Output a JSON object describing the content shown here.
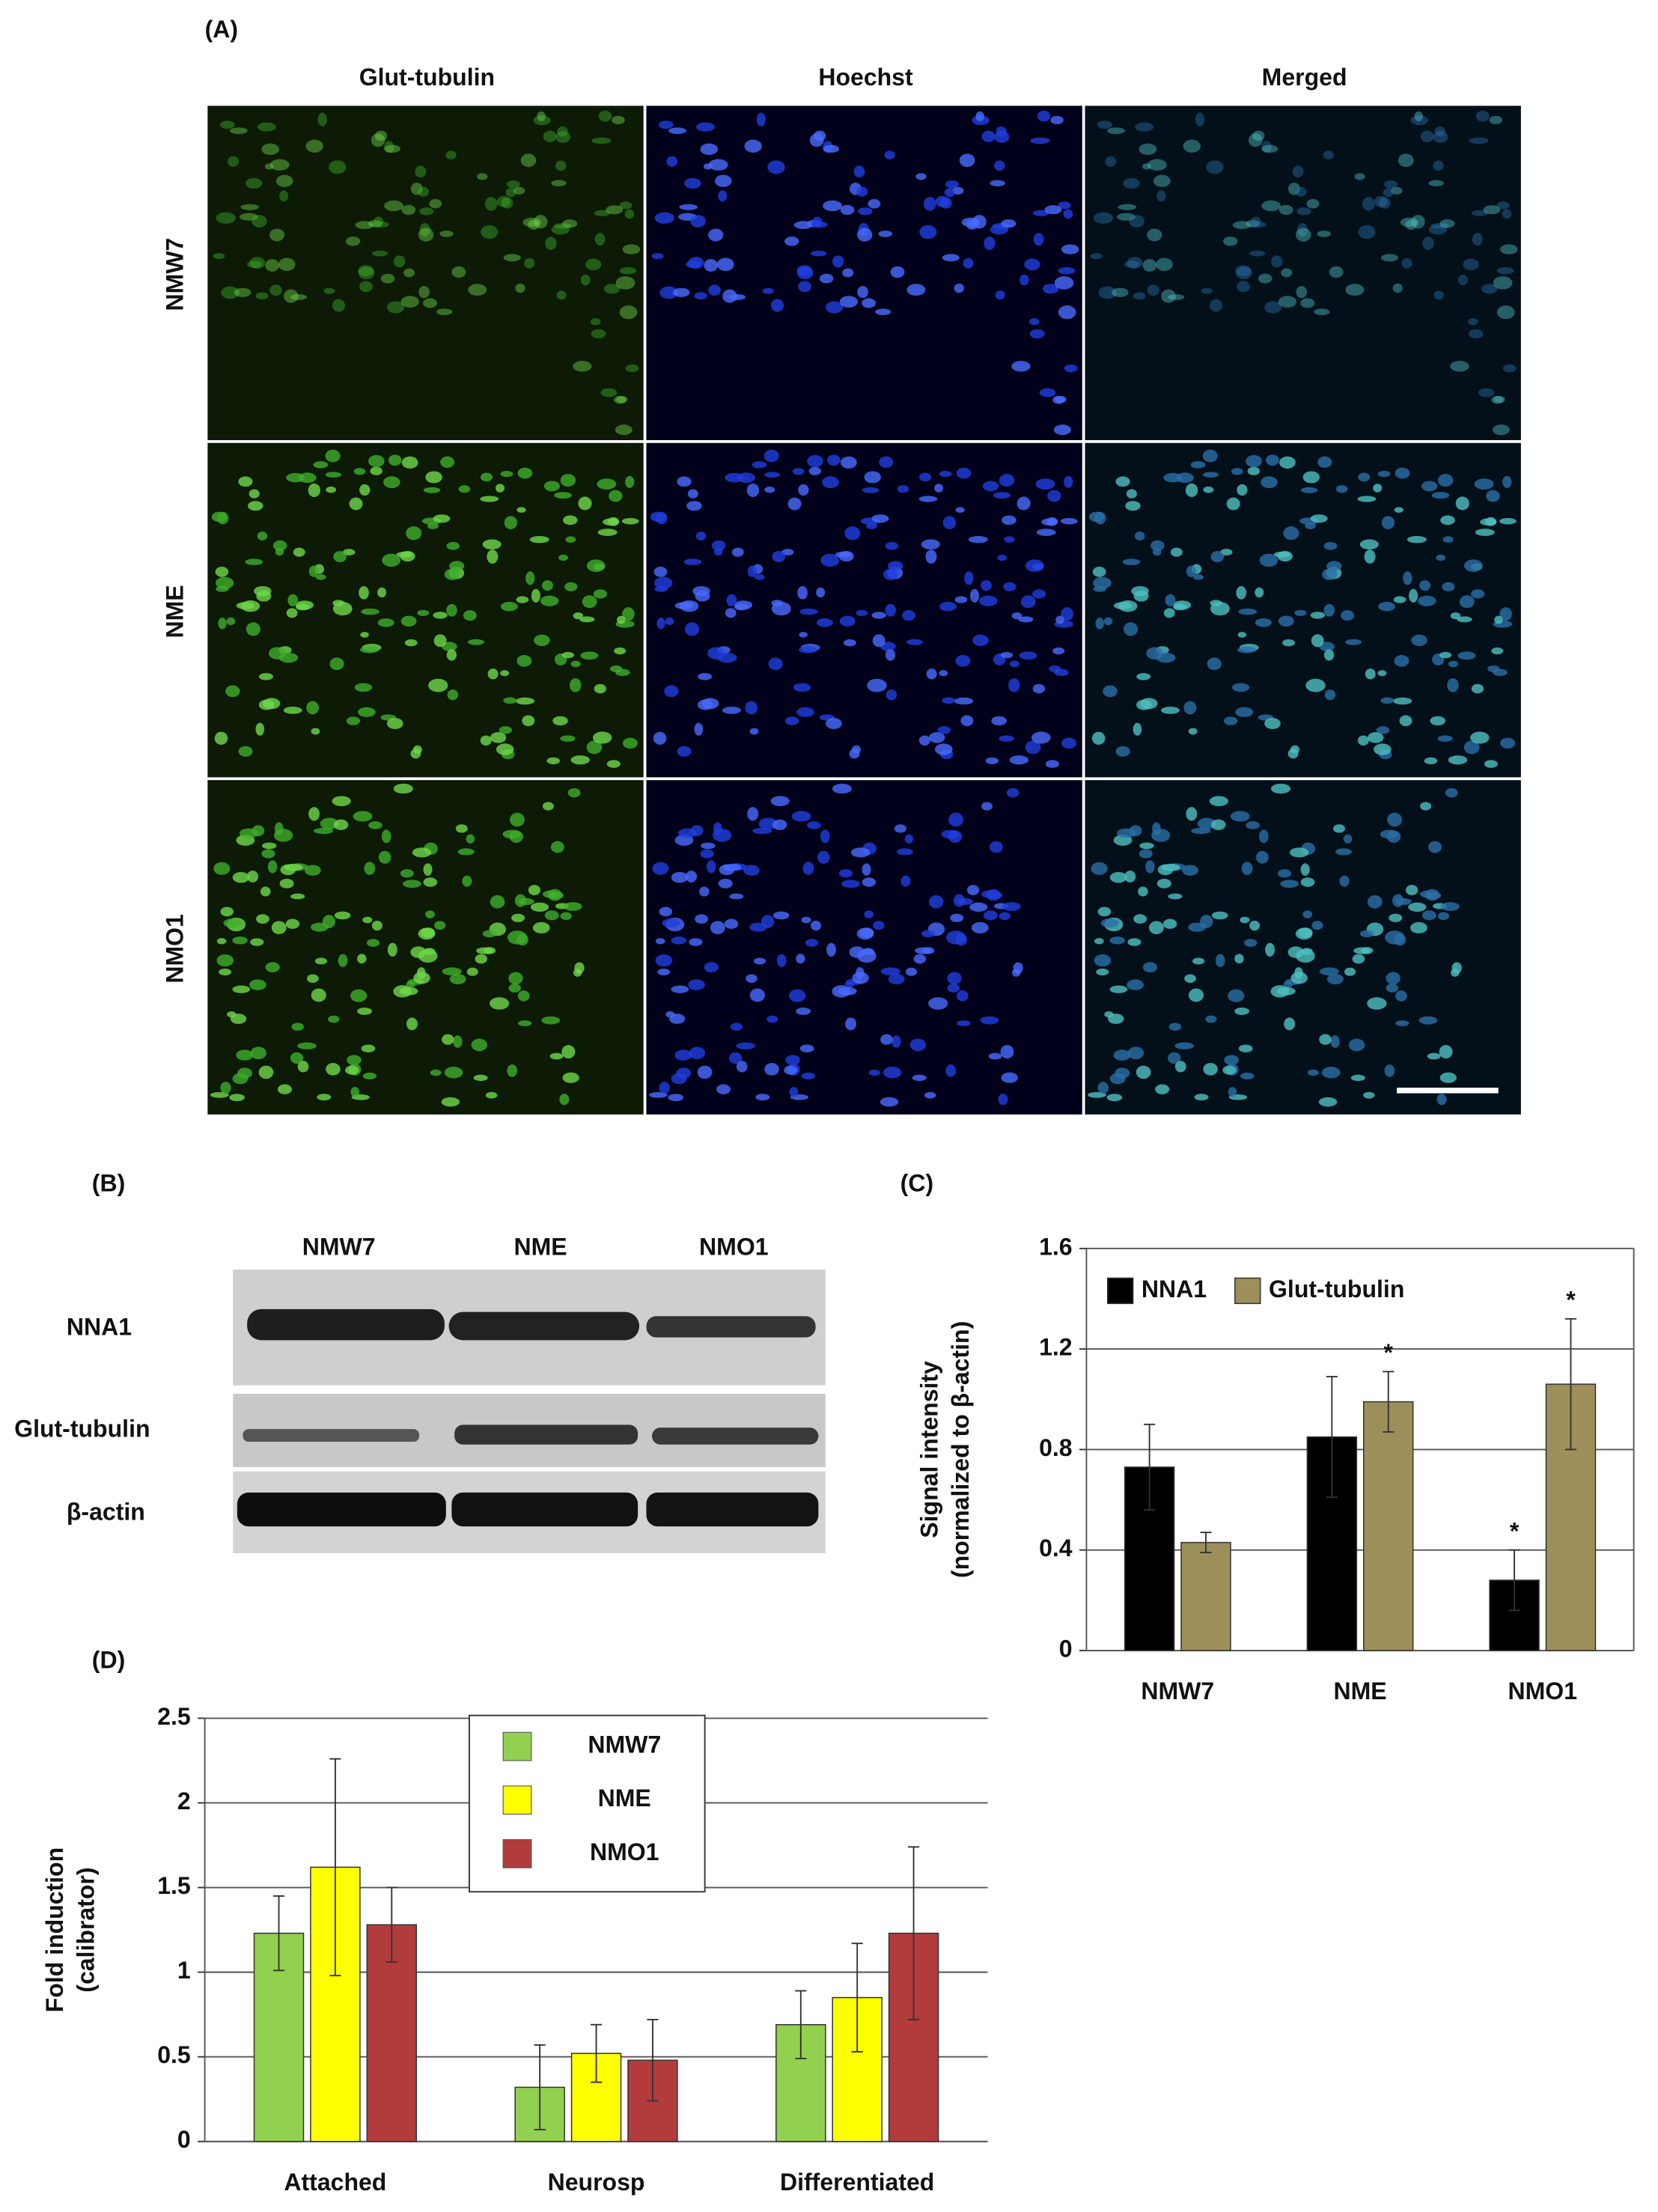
{
  "panel_labels": [
    "(A)",
    "(B)",
    "(C)",
    "(D)"
  ],
  "microscopy": {
    "columns": [
      "Glut-tubulin",
      "Hoechst",
      "Merged"
    ],
    "rows": [
      "NMW7",
      "NME",
      "NMO1"
    ]
  },
  "western_blot": {
    "lanes": [
      "NMW7",
      "NME",
      "NMO1"
    ],
    "bands": [
      "NNA1",
      "Glut-tubulin",
      "β-actin"
    ]
  },
  "chart_data": [
    {
      "type": "bar",
      "y_label": [
        "Signal intensity",
        "(normalized to β-actin)"
      ],
      "categories": [
        "NMW7",
        "NME",
        "NMO1"
      ],
      "series": [
        {
          "name": "NNA1",
          "color": "#000000",
          "values": [
            0.73,
            0.85,
            0.28
          ],
          "errors": [
            0.17,
            0.24,
            0.12
          ]
        },
        {
          "name": "Glut-tubulin",
          "color": "#9c8f5a",
          "values": [
            0.43,
            0.99,
            1.06
          ],
          "errors": [
            0.04,
            0.12,
            0.26
          ]
        }
      ],
      "annotations": [
        {
          "text": "*",
          "series": 1,
          "index": 1
        },
        {
          "text": "*",
          "series": 0,
          "index": 2
        },
        {
          "text": "*",
          "series": 1,
          "index": 2
        }
      ],
      "ylim": [
        0,
        1.6
      ],
      "yticks": [
        0,
        0.4,
        0.8,
        1.2,
        1.6
      ],
      "grid": true,
      "legend": "upper left"
    },
    {
      "type": "bar",
      "y_label": [
        "Fold induction",
        "(calibrator)"
      ],
      "categories": [
        "Attached",
        "Neurosp",
        "Differentiated"
      ],
      "series": [
        {
          "name": "NMW7",
          "color": "#92d050",
          "values": [
            1.23,
            0.32,
            0.69
          ],
          "errors": [
            0.22,
            0.25,
            0.2
          ]
        },
        {
          "name": "NME",
          "color": "#ffff00",
          "values": [
            1.62,
            0.52,
            0.85
          ],
          "errors": [
            0.64,
            0.17,
            0.32
          ]
        },
        {
          "name": "NMO1",
          "color": "#b23b3b",
          "values": [
            1.28,
            0.48,
            1.23
          ],
          "errors": [
            0.22,
            0.24,
            0.51
          ]
        }
      ],
      "ylim": [
        0,
        2.5
      ],
      "yticks": [
        0,
        0.5,
        1,
        1.5,
        2,
        2.5
      ],
      "grid": true,
      "legend": "upper center"
    }
  ]
}
